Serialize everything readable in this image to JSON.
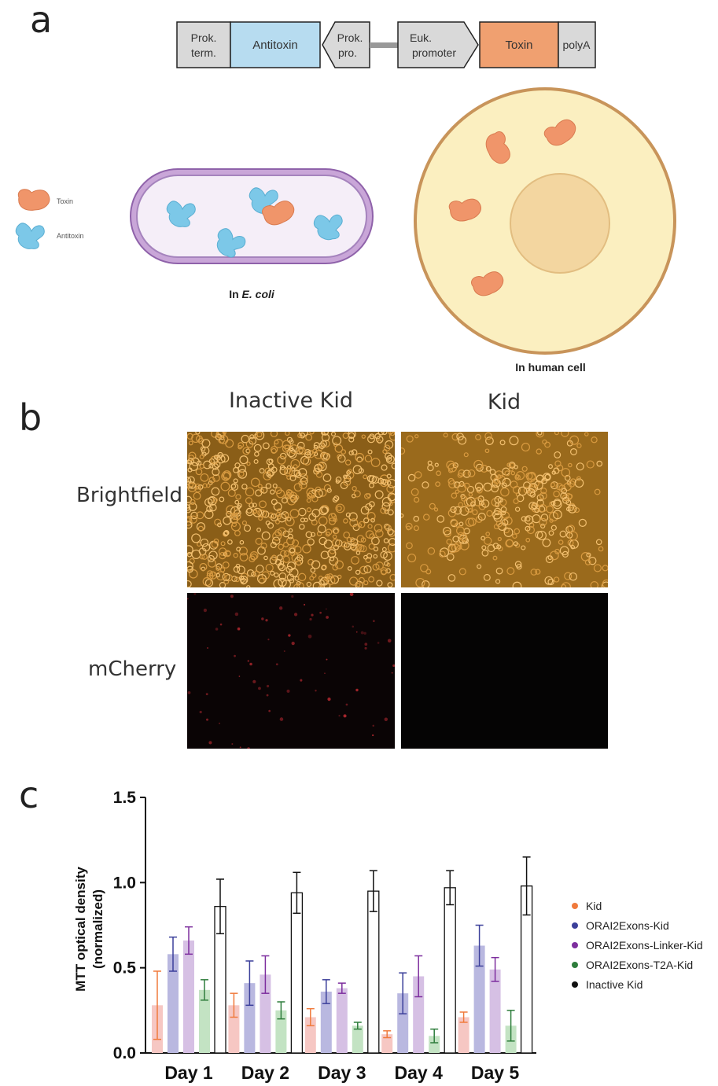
{
  "panels": {
    "a": "a",
    "b": "b",
    "c": "c"
  },
  "construct": {
    "prok_term": [
      "Prok.",
      "term."
    ],
    "antitoxin": "Antitoxin",
    "prok_pro": [
      "Prok.",
      "pro."
    ],
    "euk_promoter": [
      "Euk.",
      "promoter"
    ],
    "toxin": "Toxin",
    "polya": "polyA"
  },
  "legend_a": {
    "toxin": "Toxin",
    "antitoxin": "Antitoxin"
  },
  "captions": {
    "ecoli_prefix": "In ",
    "ecoli_italic": "E. coli",
    "human": "In human cell"
  },
  "panel_b": {
    "col_inactive": "Inactive Kid",
    "col_kid": "Kid",
    "row_brightfield": "Brightfield",
    "row_mcherry": "mCherry"
  },
  "colors": {
    "toxin": "#f0956a",
    "antitoxin": "#7cc8e8",
    "cell_fill": "#fbefc0",
    "cell_border": "#c89a55",
    "nucleus": "#f2d7a0",
    "ecoli_outer": "#9b6fb5"
  },
  "chart_data": {
    "type": "bar",
    "ylabel_line1": "MTT optical density",
    "ylabel_line2": "(normalized)",
    "ylim": [
      0,
      1.5
    ],
    "yticks": [
      "0.0",
      "0.5",
      "1.0",
      "1.5"
    ],
    "categories": [
      "Day 1",
      "Day 2",
      "Day 3",
      "Day 4",
      "Day 5"
    ],
    "series": [
      {
        "name": "Kid",
        "color": "#f07a3c",
        "fill": "#f6c7c3",
        "values": [
          0.28,
          0.28,
          0.21,
          0.11,
          0.21
        ],
        "errors": [
          0.2,
          0.07,
          0.05,
          0.02,
          0.03
        ]
      },
      {
        "name": "ORAI2Exons-Kid",
        "color": "#3b3f9a",
        "fill": "#b9b8e0",
        "values": [
          0.58,
          0.41,
          0.36,
          0.35,
          0.63
        ],
        "errors": [
          0.1,
          0.13,
          0.07,
          0.12,
          0.12
        ]
      },
      {
        "name": "ORAI2Exons-Linker-Kid",
        "color": "#7d2e9e",
        "fill": "#d6c0e4",
        "values": [
          0.66,
          0.46,
          0.38,
          0.45,
          0.49
        ],
        "errors": [
          0.08,
          0.11,
          0.03,
          0.12,
          0.07
        ]
      },
      {
        "name": "ORAI2Exons-T2A-Kid",
        "color": "#2e7d3c",
        "fill": "#c3e3c3",
        "values": [
          0.37,
          0.25,
          0.16,
          0.1,
          0.16
        ],
        "errors": [
          0.06,
          0.05,
          0.02,
          0.04,
          0.09
        ]
      },
      {
        "name": "Inactive Kid",
        "color": "#111111",
        "fill": "#ffffff",
        "values": [
          0.86,
          0.94,
          0.95,
          0.97,
          0.98
        ],
        "errors": [
          0.16,
          0.12,
          0.12,
          0.1,
          0.17
        ]
      }
    ],
    "legend_position": "right"
  }
}
